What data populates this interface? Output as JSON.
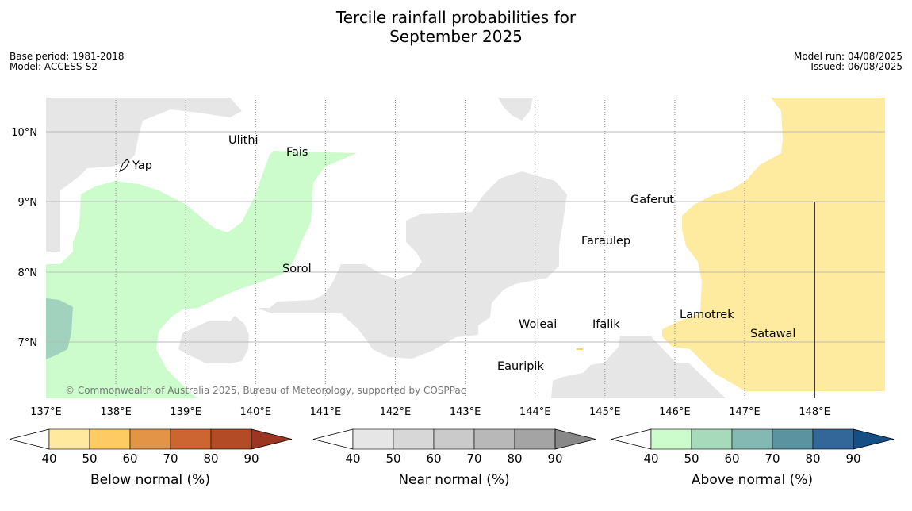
{
  "title_line1": "Tercile rainfall probabilities for",
  "title_line2": "September 2025",
  "base_period": "Base period: 1981-2018",
  "model": "Model: ACCESS-S2",
  "model_run": "Model run: 04/08/2025",
  "issued": "Issued: 06/08/2025",
  "copyright": "© Commonwealth of Australia 2025, Bureau of Meteorology, supported by COSPPac",
  "lat_labels": [
    "10°N",
    "9°N",
    "8°N",
    "7°N"
  ],
  "lon_labels": [
    "137°E",
    "138°E",
    "139°E",
    "140°E",
    "141°E",
    "142°E",
    "143°E",
    "144°E",
    "145°E",
    "146°E",
    "147°E",
    "148°E"
  ],
  "places": [
    "Ulithi",
    "Fais",
    "Yap",
    "Gaferut",
    "Faraulep",
    "Sorol",
    "Lamotrek",
    "Satawal",
    "Woleai",
    "Ifalik",
    "Eauripik"
  ],
  "colorbars": [
    {
      "label": "Below normal (%)",
      "ticks": [
        "40",
        "50",
        "60",
        "70",
        "80",
        "90"
      ],
      "colors": [
        "#fee99f",
        "#fecb63",
        "#e39446",
        "#cd6533",
        "#b34b26"
      ],
      "over": "#9c3522"
    },
    {
      "label": "Near normal (%)",
      "ticks": [
        "40",
        "50",
        "60",
        "70",
        "80",
        "90"
      ],
      "colors": [
        "#e6e6e6",
        "#d7d7d7",
        "#cacaca",
        "#b8b8b8",
        "#a4a4a4"
      ],
      "over": "#888888"
    },
    {
      "label": "Above normal (%)",
      "ticks": [
        "40",
        "50",
        "60",
        "70",
        "80",
        "90"
      ],
      "colors": [
        "#ccfccc",
        "#a6dabb",
        "#84b8b2",
        "#5b93a0",
        "#336699"
      ],
      "over": "#154f85"
    }
  ]
}
